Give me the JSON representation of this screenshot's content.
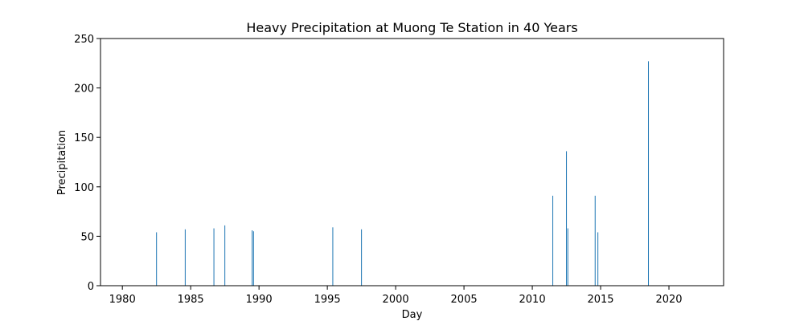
{
  "chart_data": {
    "type": "bar",
    "title": "Heavy Precipitation at Muong Te Station in 40 Years",
    "xlabel": "Day",
    "ylabel": "Precipitation",
    "xlim": [
      1978.4,
      2024.0
    ],
    "ylim": [
      0,
      250
    ],
    "x_ticks": [
      1980,
      1985,
      1990,
      1995,
      2000,
      2005,
      2010,
      2015,
      2020
    ],
    "y_ticks": [
      0,
      50,
      100,
      150,
      200,
      250
    ],
    "grid": false,
    "legend": "none",
    "bar_color": "#1f77b4",
    "points": [
      {
        "x": 1982.5,
        "y": 54
      },
      {
        "x": 1984.6,
        "y": 57
      },
      {
        "x": 1986.7,
        "y": 58
      },
      {
        "x": 1987.5,
        "y": 61
      },
      {
        "x": 1989.5,
        "y": 56
      },
      {
        "x": 1989.6,
        "y": 55
      },
      {
        "x": 1995.4,
        "y": 59
      },
      {
        "x": 1997.5,
        "y": 57
      },
      {
        "x": 2011.5,
        "y": 91
      },
      {
        "x": 2012.5,
        "y": 136
      },
      {
        "x": 2012.6,
        "y": 58
      },
      {
        "x": 2014.6,
        "y": 91
      },
      {
        "x": 2014.8,
        "y": 54
      },
      {
        "x": 2018.5,
        "y": 227
      }
    ]
  }
}
